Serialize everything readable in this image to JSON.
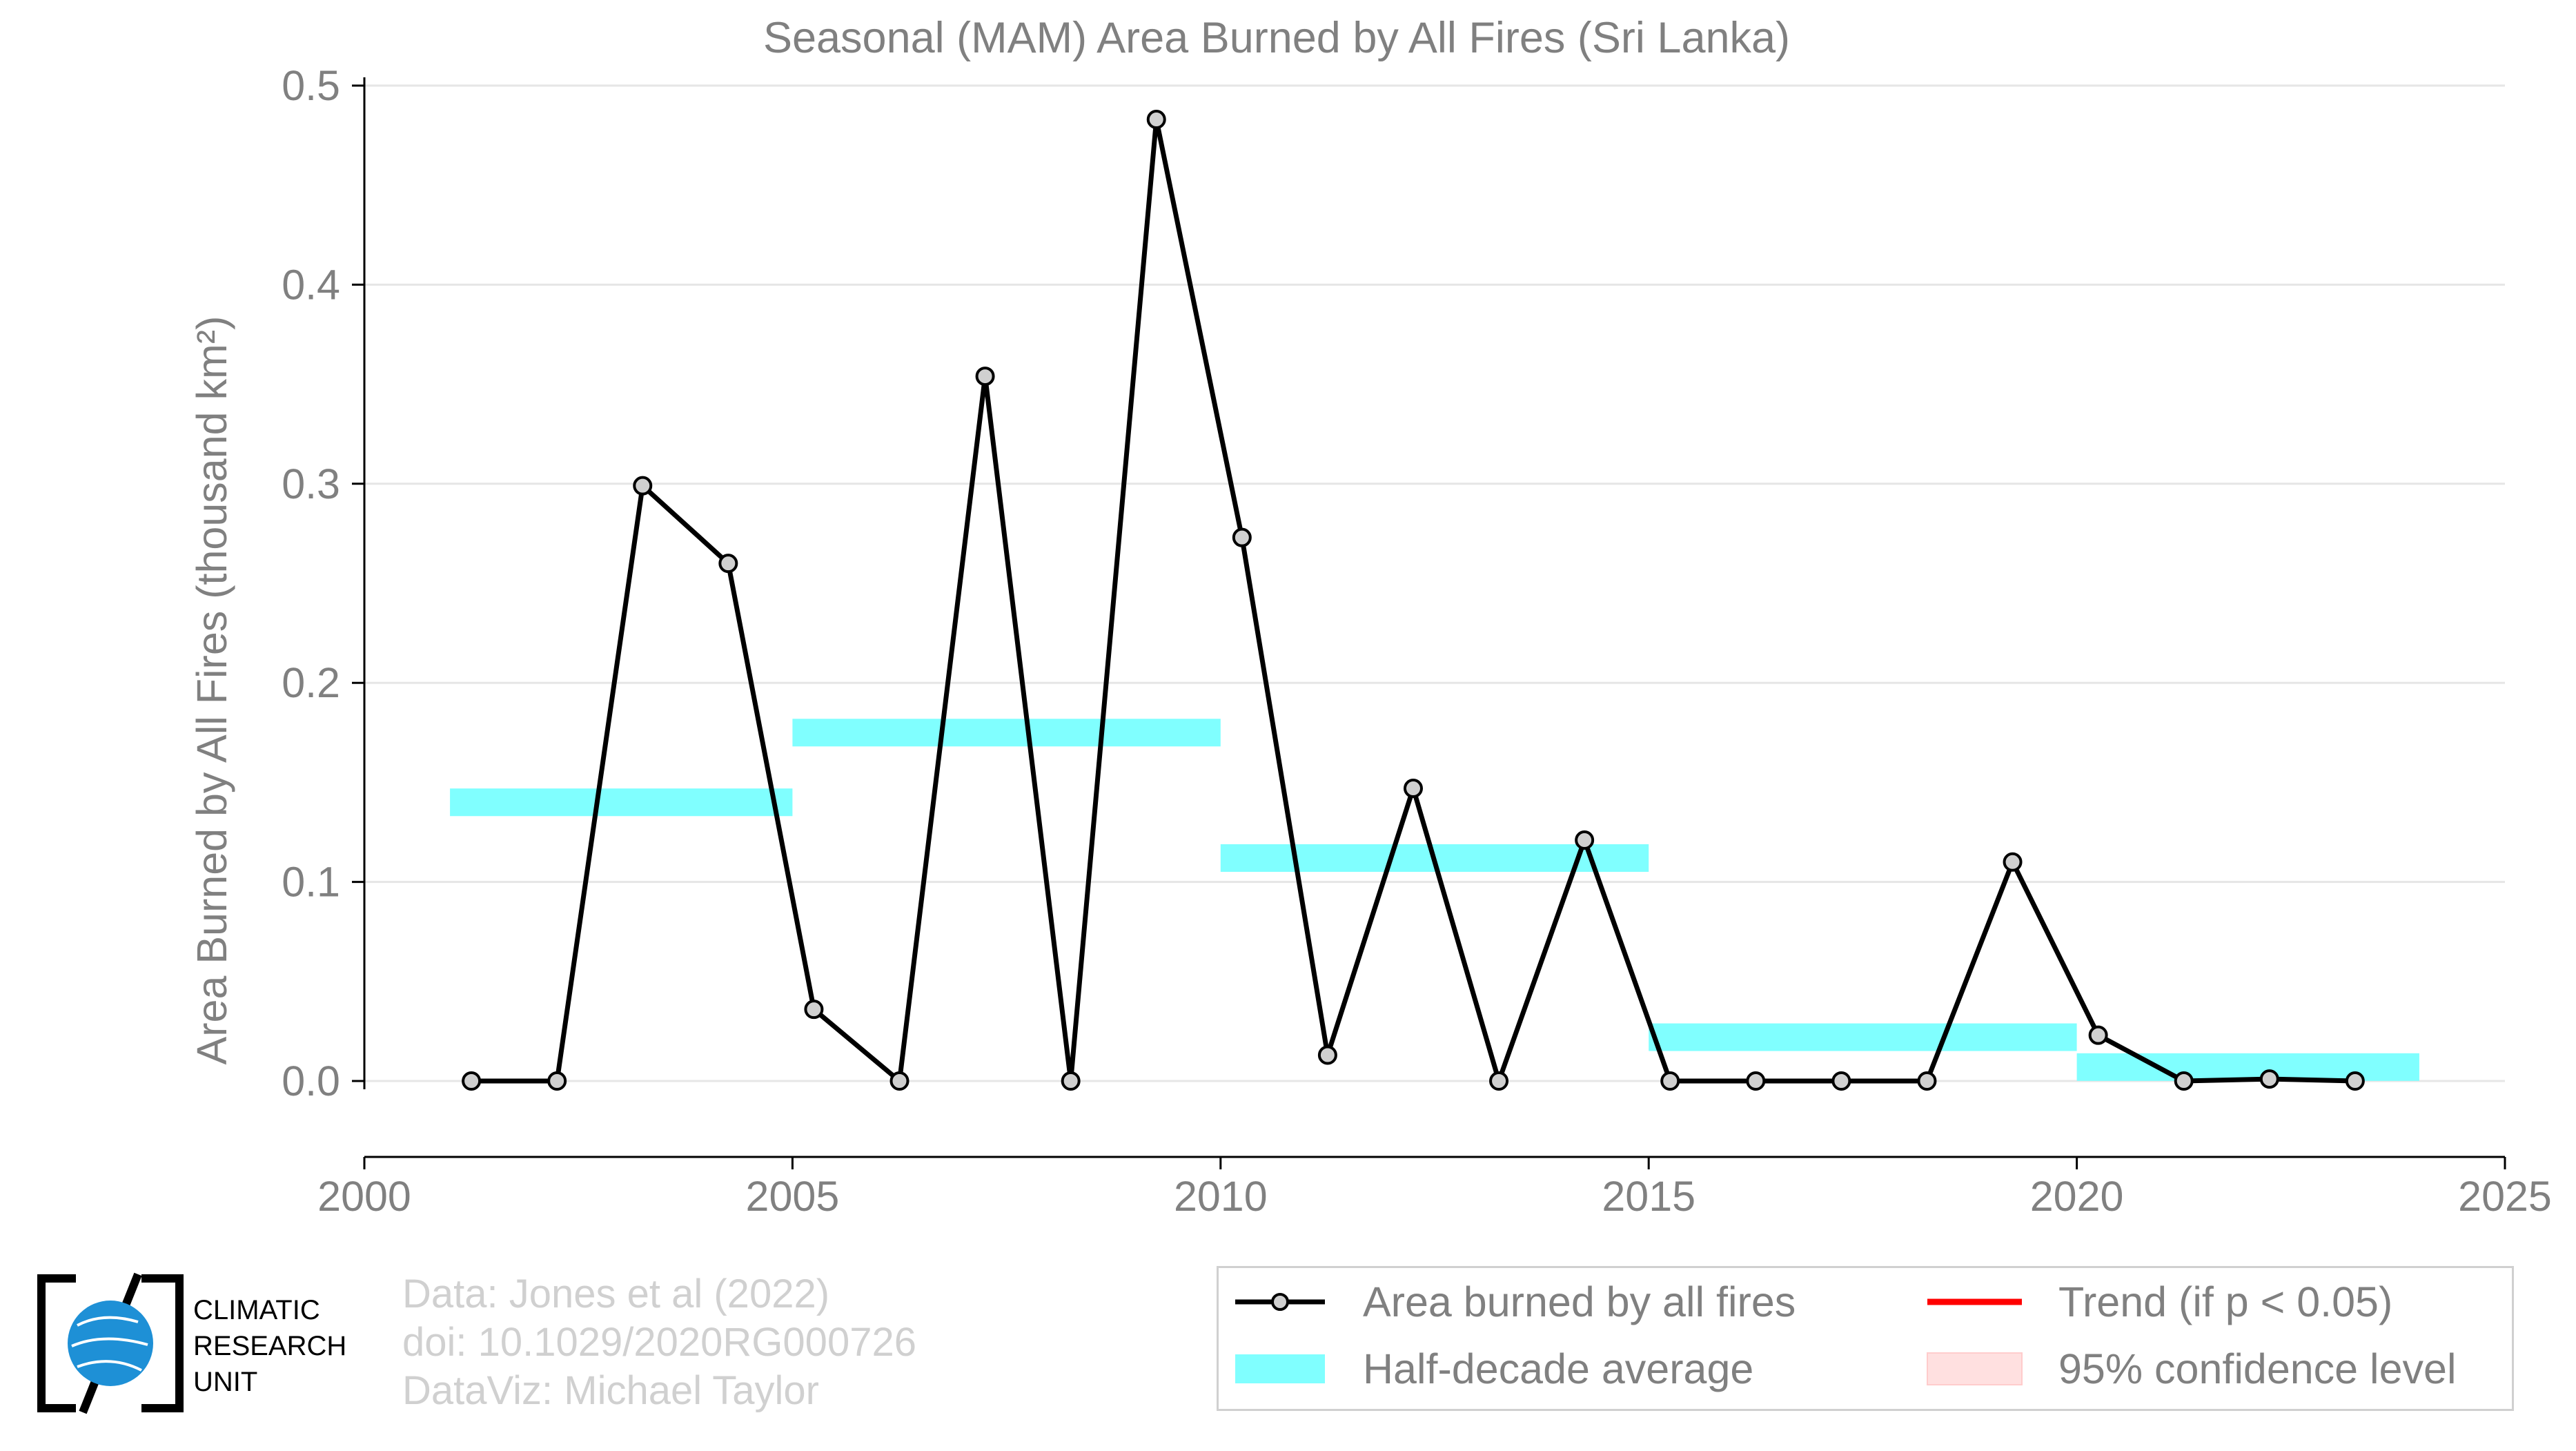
{
  "chart_data": {
    "type": "line",
    "title": "Seasonal (MAM) Area Burned by All Fires (Sri Lanka)",
    "ylabel": "Area Burned by All Fires (thousand km²)",
    "xlabel": "",
    "xlim": [
      2000,
      2025
    ],
    "ylim": [
      0,
      0.5
    ],
    "x_ticks": [
      "2000",
      "2005",
      "2010",
      "2015",
      "2020",
      "2025"
    ],
    "y_ticks": [
      "0.0",
      "0.1",
      "0.2",
      "0.3",
      "0.4",
      "0.5"
    ],
    "grid": true,
    "series": [
      {
        "name": "Area burned by all fires",
        "color": "#000000",
        "x": [
          2001.25,
          2002.25,
          2003.25,
          2004.25,
          2005.25,
          2006.25,
          2007.25,
          2008.25,
          2009.25,
          2010.25,
          2011.25,
          2012.25,
          2013.25,
          2014.25,
          2015.25,
          2016.25,
          2017.25,
          2018.25,
          2019.25,
          2020.25,
          2021.25,
          2022.25,
          2023.25
        ],
        "values": [
          0.0,
          0.0,
          0.299,
          0.26,
          0.036,
          0.0,
          0.354,
          0.0,
          0.483,
          0.273,
          0.013,
          0.147,
          0.0,
          0.121,
          0.0,
          0.0,
          0.0,
          0.0,
          0.11,
          0.023,
          0.0,
          0.001,
          0.0
        ]
      }
    ],
    "half_decade_average": {
      "name": "Half-decade average",
      "color": "#80ffff",
      "segments": [
        {
          "start": 2001,
          "end": 2005,
          "value": 0.14
        },
        {
          "start": 2005,
          "end": 2010,
          "value": 0.175
        },
        {
          "start": 2010,
          "end": 2015,
          "value": 0.112
        },
        {
          "start": 2015,
          "end": 2020,
          "value": 0.022
        },
        {
          "start": 2020,
          "end": 2024,
          "value": 0.007
        }
      ]
    },
    "legend": {
      "placement": "bottom-right",
      "entries": [
        {
          "label": "Area burned by all fires",
          "kind": "line-point",
          "color": "#000000"
        },
        {
          "label": "Trend (if p < 0.05)",
          "kind": "line",
          "color": "#ff0000"
        },
        {
          "label": "Half-decade average",
          "kind": "band",
          "color": "#80ffff"
        },
        {
          "label": "95% confidence level",
          "kind": "fill",
          "color": "#ffe0e0"
        }
      ]
    }
  },
  "credits": {
    "line1": "Data: Jones et al (2022)",
    "line2": "doi: 10.1029/2020RG000726",
    "line3": "DataViz: Michael Taylor"
  },
  "logo": {
    "line1": "CLIMATIC",
    "line2": "RESEARCH",
    "line3": "UNIT"
  }
}
